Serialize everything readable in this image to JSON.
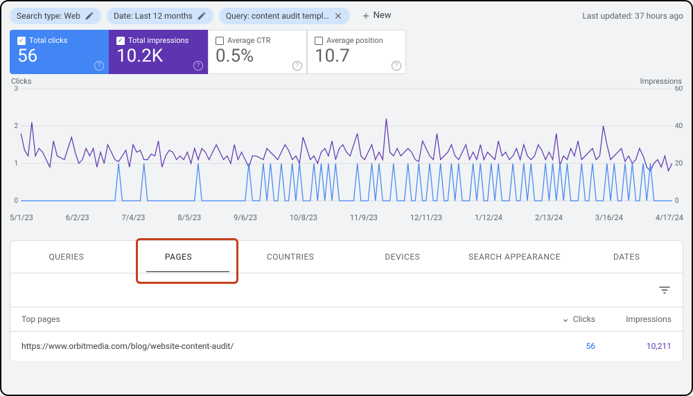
{
  "filters": {
    "search_type": "Search type: Web",
    "date": "Date: Last 12 months",
    "query": "Query: content audit templ…",
    "new_label": "New"
  },
  "updated": "Last updated: 37 hours ago",
  "metrics": {
    "clicks": {
      "label": "Total clicks",
      "value": "56",
      "checked": true,
      "color": "#4285f4"
    },
    "impressions": {
      "label": "Total impressions",
      "value": "10.2K",
      "checked": true,
      "color": "#5e35b1"
    },
    "ctr": {
      "label": "Average CTR",
      "value": "0.5%",
      "checked": false
    },
    "position": {
      "label": "Average position",
      "value": "10.7",
      "checked": false
    }
  },
  "chart": {
    "left_label": "Clicks",
    "right_label": "Impressions",
    "y_left": {
      "min": 0,
      "max": 3,
      "ticks": [
        0,
        1,
        2,
        3
      ]
    },
    "y_right": {
      "min": 0,
      "max": 60,
      "ticks": [
        0,
        20,
        40,
        60
      ]
    },
    "x_labels": [
      "5/1/23",
      "6/2/23",
      "7/4/23",
      "8/5/23",
      "9/6/23",
      "10/8/23",
      "11/9/23",
      "12/11/23",
      "1/12/24",
      "2/13/24",
      "3/16/24",
      "4/17/24"
    ],
    "clicks_color": "#4285f4",
    "impressions_color": "#5e35b1",
    "grid_color": "#dadce0",
    "background": "#f1f3f4",
    "impressions": [
      36,
      27,
      24,
      42,
      24,
      28,
      26,
      22,
      18,
      32,
      24,
      23,
      22,
      28,
      34,
      26,
      20,
      22,
      28,
      24,
      28,
      18,
      26,
      20,
      30,
      26,
      22,
      21,
      24,
      27,
      18,
      30,
      26,
      27,
      22,
      22,
      25,
      24,
      32,
      18,
      24,
      27,
      26,
      22,
      24,
      22,
      26,
      20,
      28,
      22,
      28,
      26,
      22,
      26,
      30,
      26,
      22,
      24,
      20,
      30,
      22,
      26,
      22,
      18,
      24,
      24,
      23,
      22,
      28,
      26,
      24,
      22,
      26,
      30,
      27,
      22,
      24,
      20,
      34,
      28,
      22,
      24,
      20,
      26,
      28,
      24,
      32,
      22,
      28,
      30,
      26,
      24,
      30,
      36,
      24,
      22,
      26,
      30,
      22,
      26,
      22,
      44,
      26,
      24,
      28,
      24,
      26,
      28,
      26,
      22,
      21,
      32,
      28,
      24,
      22,
      36,
      22,
      24,
      26,
      30,
      24,
      22,
      26,
      30,
      22,
      26,
      22,
      30,
      22,
      26,
      24,
      22,
      32,
      24,
      26,
      22,
      24,
      28,
      22,
      30,
      24,
      22,
      24,
      30,
      27,
      22,
      26,
      22,
      36,
      19,
      24,
      22,
      28,
      24,
      32,
      22,
      24,
      26,
      28,
      22,
      24,
      40,
      30,
      22,
      24,
      26,
      28,
      21,
      24,
      20,
      22,
      28,
      24,
      18,
      16,
      20,
      22,
      18,
      24,
      16,
      20
    ],
    "clicks": [
      0,
      0,
      0,
      0,
      0,
      0,
      0,
      0,
      0,
      0,
      0,
      0,
      0,
      0,
      0,
      0,
      0,
      0,
      0,
      0,
      0,
      0,
      0,
      0,
      0,
      0,
      0,
      1,
      0,
      0,
      0,
      0,
      0,
      0,
      1,
      0,
      0,
      0,
      0,
      0,
      0,
      0,
      0,
      0,
      0,
      0,
      0,
      0,
      0,
      1,
      0,
      0,
      0,
      0,
      0,
      0,
      0,
      0,
      0,
      0,
      0,
      0,
      0,
      1,
      0,
      0,
      0,
      1,
      0,
      1,
      0,
      0,
      1,
      0,
      0,
      1,
      0,
      1,
      0,
      0,
      0,
      1,
      0,
      1,
      0,
      1,
      0,
      1,
      0,
      0,
      0,
      0,
      0,
      1,
      0,
      0,
      0,
      1,
      0,
      1,
      0,
      0,
      0,
      1,
      0,
      0,
      0,
      1,
      0,
      0,
      1,
      0,
      0,
      1,
      0,
      0,
      1,
      0,
      0,
      1,
      0,
      1,
      0,
      0,
      0,
      1,
      0,
      1,
      0,
      0,
      1,
      0,
      1,
      0,
      0,
      0,
      1,
      0,
      0,
      1,
      0,
      1,
      0,
      0,
      0,
      1,
      0,
      1,
      0,
      1,
      0,
      1,
      0,
      0,
      0,
      1,
      0,
      0,
      1,
      0,
      0,
      0,
      1,
      0,
      1,
      0,
      0,
      1,
      0,
      1,
      0,
      0,
      1,
      0,
      1,
      0,
      0,
      0,
      0,
      0,
      0
    ]
  },
  "tabs": [
    "QUERIES",
    "PAGES",
    "COUNTRIES",
    "DEVICES",
    "SEARCH APPEARANCE",
    "DATES"
  ],
  "active_tab": 1,
  "table": {
    "header": {
      "col0": "Top pages",
      "col1": "Clicks",
      "col2": "Impressions"
    },
    "rows": [
      {
        "url": "https://www.orbitmedia.com/blog/website-content-audit/",
        "clicks": "56",
        "impressions": "10,211"
      }
    ]
  }
}
